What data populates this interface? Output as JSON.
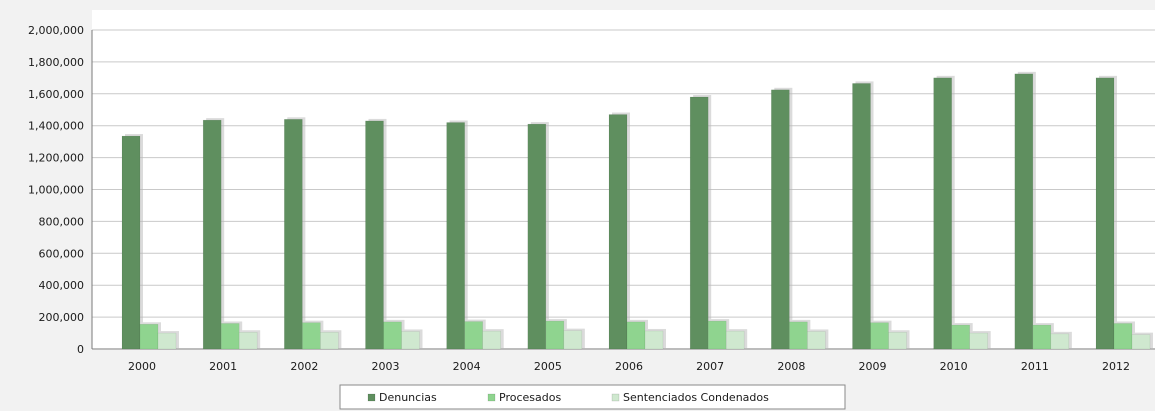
{
  "chart_data": {
    "type": "bar",
    "categories": [
      "2000",
      "2001",
      "2002",
      "2003",
      "2004",
      "2005",
      "2006",
      "2007",
      "2008",
      "2009",
      "2010",
      "2011",
      "2012"
    ],
    "series": [
      {
        "name": "Denuncias",
        "color": "#5f8f5f",
        "values": [
          1335000,
          1435000,
          1440000,
          1430000,
          1420000,
          1410000,
          1470000,
          1580000,
          1625000,
          1665000,
          1700000,
          1725000,
          1700000
        ]
      },
      {
        "name": "Procesados",
        "color": "#8fd48f",
        "values": [
          155000,
          160000,
          165000,
          170000,
          172000,
          175000,
          170000,
          175000,
          170000,
          165000,
          150000,
          150000,
          160000
        ]
      },
      {
        "name": "Sentenciados Condenados",
        "color": "#cfe8cf",
        "values": [
          100000,
          105000,
          105000,
          110000,
          112000,
          115000,
          113000,
          112000,
          110000,
          105000,
          100000,
          95000,
          90000
        ]
      }
    ],
    "ylim": [
      0,
      2000000
    ],
    "yticks": [
      "0",
      "200,000",
      "400,000",
      "600,000",
      "800,000",
      "1,000,000",
      "1,200,000",
      "1,400,000",
      "1,600,000",
      "1,800,000",
      "2,000,000"
    ],
    "ytick_values": [
      0,
      200000,
      400000,
      600000,
      800000,
      1000000,
      1200000,
      1400000,
      1600000,
      1800000,
      2000000
    ],
    "grid": true,
    "legend_position": "bottom"
  }
}
